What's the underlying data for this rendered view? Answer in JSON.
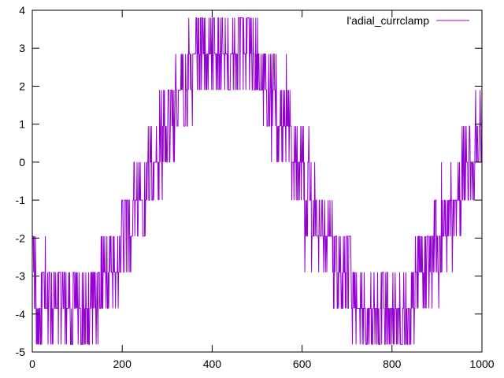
{
  "chart_data": {
    "type": "line",
    "title": "",
    "xlabel": "",
    "ylabel": "",
    "xlim": [
      0,
      1000
    ],
    "ylim": [
      -5,
      4
    ],
    "x_ticks": [
      "0",
      "200",
      "400",
      "600",
      "800",
      "1000"
    ],
    "y_ticks": [
      "4",
      "3",
      "2",
      "1",
      "0",
      "-1",
      "-2",
      "-3",
      "-4",
      "-5"
    ],
    "grid": false,
    "legend_position": "top-right",
    "series": [
      {
        "name": "l'adial_currclamp",
        "color": "#9400d3",
        "levels": [
          -4.8,
          -3.85,
          -2.9,
          -1.95,
          -1.0,
          0.0,
          0.95,
          1.9,
          2.85,
          3.8
        ],
        "x_start": 0,
        "x_end": 1000,
        "x_step": 1,
        "approx_period": 700,
        "approx_center": -0.5,
        "approx_amplitude": 3.6
      }
    ]
  }
}
